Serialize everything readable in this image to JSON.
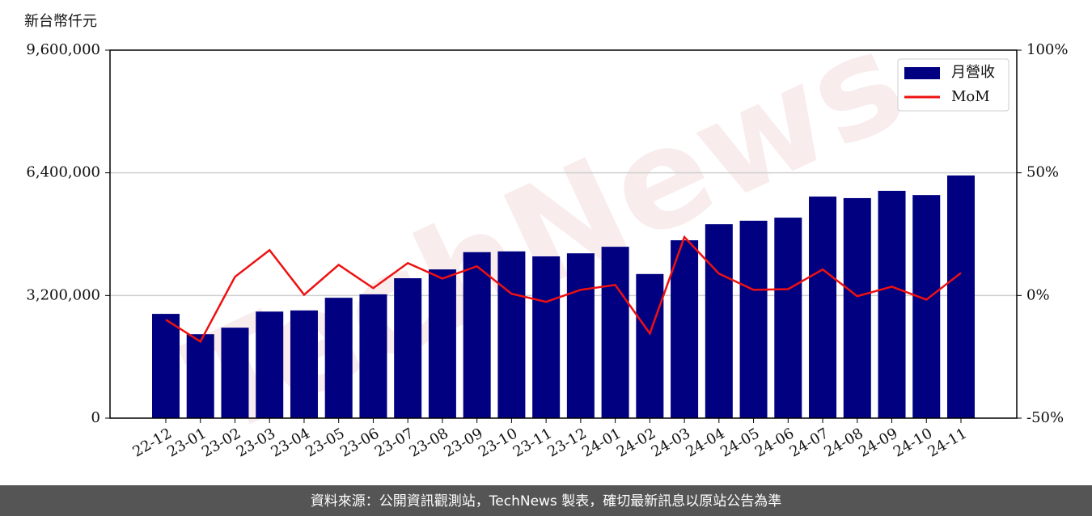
{
  "chart_data": {
    "type": "bar-line",
    "y_label": "新台幣仟元",
    "watermark": "TechNews",
    "footer": "資料來源：公開資訊觀測站，TechNews 製表，確切最新訊息以原站公告為準",
    "categories": [
      "22-12",
      "23-01",
      "23-02",
      "23-03",
      "23-04",
      "23-05",
      "23-06",
      "23-07",
      "23-08",
      "23-09",
      "23-10",
      "23-11",
      "23-12",
      "24-01",
      "24-02",
      "24-03",
      "24-04",
      "24-05",
      "24-06",
      "24-07",
      "24-08",
      "24-09",
      "24-10",
      "24-11"
    ],
    "series": [
      {
        "name": "月營收",
        "type": "bar",
        "color": "#000080",
        "values": [
          2720000,
          2190000,
          2360000,
          2780000,
          2810000,
          3140000,
          3230000,
          3650000,
          3880000,
          4330000,
          4350000,
          4220000,
          4300000,
          4470000,
          3760000,
          4640000,
          5060000,
          5150000,
          5230000,
          5780000,
          5740000,
          5930000,
          5820000,
          6330000
        ]
      },
      {
        "name": "MoM",
        "type": "line",
        "axis": "y2",
        "color": "#ee1111",
        "values": [
          -9.9,
          -18.8,
          7.6,
          18.5,
          0.3,
          12.5,
          3.0,
          13.2,
          6.9,
          11.9,
          0.7,
          -2.6,
          2.3,
          4.3,
          -15.5,
          23.8,
          8.9,
          2.3,
          2.6,
          10.6,
          -0.3,
          3.6,
          -1.7,
          9.2
        ]
      }
    ],
    "ylim": [
      0,
      9600000
    ],
    "yticks": [
      {
        "value": 0,
        "label": "0"
      },
      {
        "value": 3200000,
        "label": "3,200,000"
      },
      {
        "value": 6400000,
        "label": "6,400,000"
      },
      {
        "value": 9600000,
        "label": "9,600,000"
      }
    ],
    "y2lim": [
      -50,
      100
    ],
    "y2ticks": [
      {
        "value": -50,
        "label": "-50%"
      },
      {
        "value": 0,
        "label": "0%"
      },
      {
        "value": 50,
        "label": "50%"
      },
      {
        "value": 100,
        "label": "100%"
      }
    ],
    "grid": true,
    "legend": "upper right"
  }
}
